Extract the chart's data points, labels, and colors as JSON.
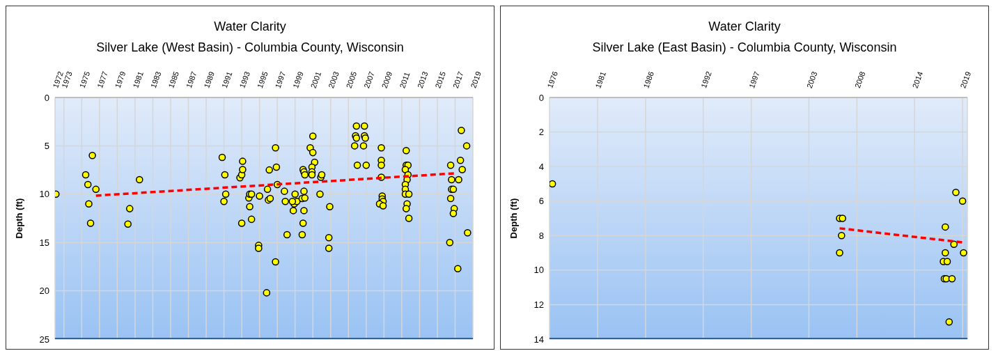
{
  "chart_data": [
    {
      "type": "scatter",
      "title": "Water Clarity",
      "subtitle": "Silver Lake (West Basin) - Columbia County, Wisconsin",
      "ylabel": "Depth (ft)",
      "grid": true,
      "legend": false,
      "xlim": [
        1972,
        2019
      ],
      "xticks": [
        1972,
        1973,
        1975,
        1977,
        1979,
        1981,
        1983,
        1985,
        1987,
        1989,
        1991,
        1993,
        1995,
        1997,
        1999,
        2001,
        2003,
        2005,
        2007,
        2009,
        2011,
        2013,
        2015,
        2017,
        2019
      ],
      "ylim": [
        25,
        0
      ],
      "yticks": [
        0,
        5,
        10,
        15,
        20,
        25
      ],
      "series": [
        {
          "type": "scatter",
          "marker": "circle",
          "color": "#ffff00",
          "x": [
            1972.1,
            1975.45,
            1975.7,
            1976.2,
            1975.8,
            1976.0,
            1976.6,
            1980.2,
            1980.4,
            1981.5,
            1990.8,
            1991.1,
            1991.0,
            1991.2,
            1992.8,
            1993.0,
            1993.1,
            1993.1,
            1993.0,
            1993.8,
            1993.9,
            1994.1,
            1993.9,
            1994.1,
            1995.0,
            1994.9,
            1994.9,
            1995.8,
            1995.9,
            1996.1,
            1996.0,
            1996.2,
            1996.8,
            1996.9,
            1997.0,
            1996.8,
            1997.8,
            1997.9,
            1998.1,
            1998.8,
            1998.9,
            1999.0,
            1999.2,
            1998.7,
            1999.8,
            1999.9,
            1999.8,
            2000.0,
            2000.0,
            2000.1,
            1999.9,
            2000.0,
            2000.1,
            2000.7,
            2001.0,
            2001.0,
            2001.2,
            2000.9,
            2000.9,
            2000.9,
            2001.8,
            2001.9,
            2002.0,
            2002.9,
            2002.8,
            2002.8,
            2005.9,
            2006.8,
            2005.8,
            2005.9,
            2006.8,
            2006.9,
            2005.7,
            2006.7,
            2006.0,
            2007.0,
            2008.7,
            2008.7,
            2008.7,
            2008.7,
            2008.8,
            2008.8,
            2008.9,
            2008.5,
            2008.9,
            2011.5,
            2011.5,
            2011.7,
            2011.4,
            2011.7,
            2011.6,
            2011.4,
            2011.4,
            2011.4,
            2011.8,
            2011.6,
            2011.5,
            2011.8,
            2016.5,
            2016.6,
            2016.6,
            2016.8,
            2016.5,
            2016.9,
            2016.8,
            2016.4,
            2017.4,
            2017.3,
            2017.7,
            2017.6,
            2017.8,
            2018.3,
            2018.4
          ],
          "values": [
            10,
            8,
            9,
            6,
            11,
            13,
            9.5,
            13.1,
            11.5,
            8.5,
            6.2,
            8,
            10.75,
            10,
            8.3,
            8,
            6.6,
            7.45,
            13,
            10.4,
            10,
            10,
            11.3,
            12.6,
            10.2,
            15.3,
            15.6,
            20.2,
            9.5,
            7.5,
            10.6,
            10.45,
            5.2,
            7.2,
            9,
            17,
            9.7,
            10.75,
            14.2,
            11.7,
            11,
            10,
            10.75,
            10.75,
            14.2,
            13,
            10.45,
            9.7,
            11.7,
            10.4,
            7.45,
            7.7,
            8,
            5.2,
            4,
            5.7,
            6.7,
            7.2,
            7.7,
            8,
            10,
            8.25,
            8,
            11.3,
            14.5,
            15.6,
            2.95,
            2.95,
            3.96,
            4.2,
            3.96,
            4.2,
            5,
            5,
            7,
            7,
            5.2,
            6.5,
            7,
            8.25,
            10.2,
            10.5,
            10.75,
            11,
            11.2,
            5.5,
            7,
            7,
            7.45,
            8,
            8.5,
            9,
            9.5,
            10,
            10,
            11,
            11.5,
            12.5,
            7,
            8.5,
            9.5,
            9.5,
            10.45,
            11.5,
            12,
            15,
            8.5,
            17.7,
            3.4,
            6.5,
            7.45,
            5,
            14
          ]
        },
        {
          "type": "line",
          "marker": "none",
          "color": "#ff0000",
          "line_style": "dashed",
          "x": [
            1976.6,
            2016.9
          ],
          "values": [
            10.15,
            7.85
          ]
        }
      ]
    },
    {
      "type": "scatter",
      "title": "Water Clarity",
      "subtitle": "Silver Lake (East Basin) - Columbia County, Wisconsin",
      "ylabel": "Depth (ft)",
      "grid": true,
      "legend": false,
      "xlim": [
        1976,
        2019.5
      ],
      "xticks": [
        1976,
        1981,
        1986,
        1992,
        1997,
        2003,
        2008,
        2014,
        2019
      ],
      "ylim": [
        14,
        0
      ],
      "yticks": [
        0,
        2,
        4,
        6,
        8,
        10,
        12,
        14
      ],
      "series": [
        {
          "type": "scatter",
          "marker": "circle",
          "color": "#ffff00",
          "x": [
            1976.3,
            2006.2,
            2006.5,
            2006.4,
            2006.2,
            2018.3,
            2019.0,
            2017.2,
            2018.1,
            2017.2,
            2019.1,
            2017.0,
            2017.4,
            2017.1,
            2017.3,
            2017.9,
            2017.6
          ],
          "values": [
            5,
            7,
            7,
            8,
            9,
            5.5,
            6,
            7.5,
            8.5,
            9,
            9,
            9.5,
            9.5,
            10.5,
            10.5,
            10.5,
            13
          ]
        },
        {
          "type": "line",
          "marker": "none",
          "color": "#ff0000",
          "line_style": "dashed",
          "x": [
            2006.2,
            2019.1
          ],
          "values": [
            7.58,
            8.4
          ]
        }
      ]
    }
  ]
}
